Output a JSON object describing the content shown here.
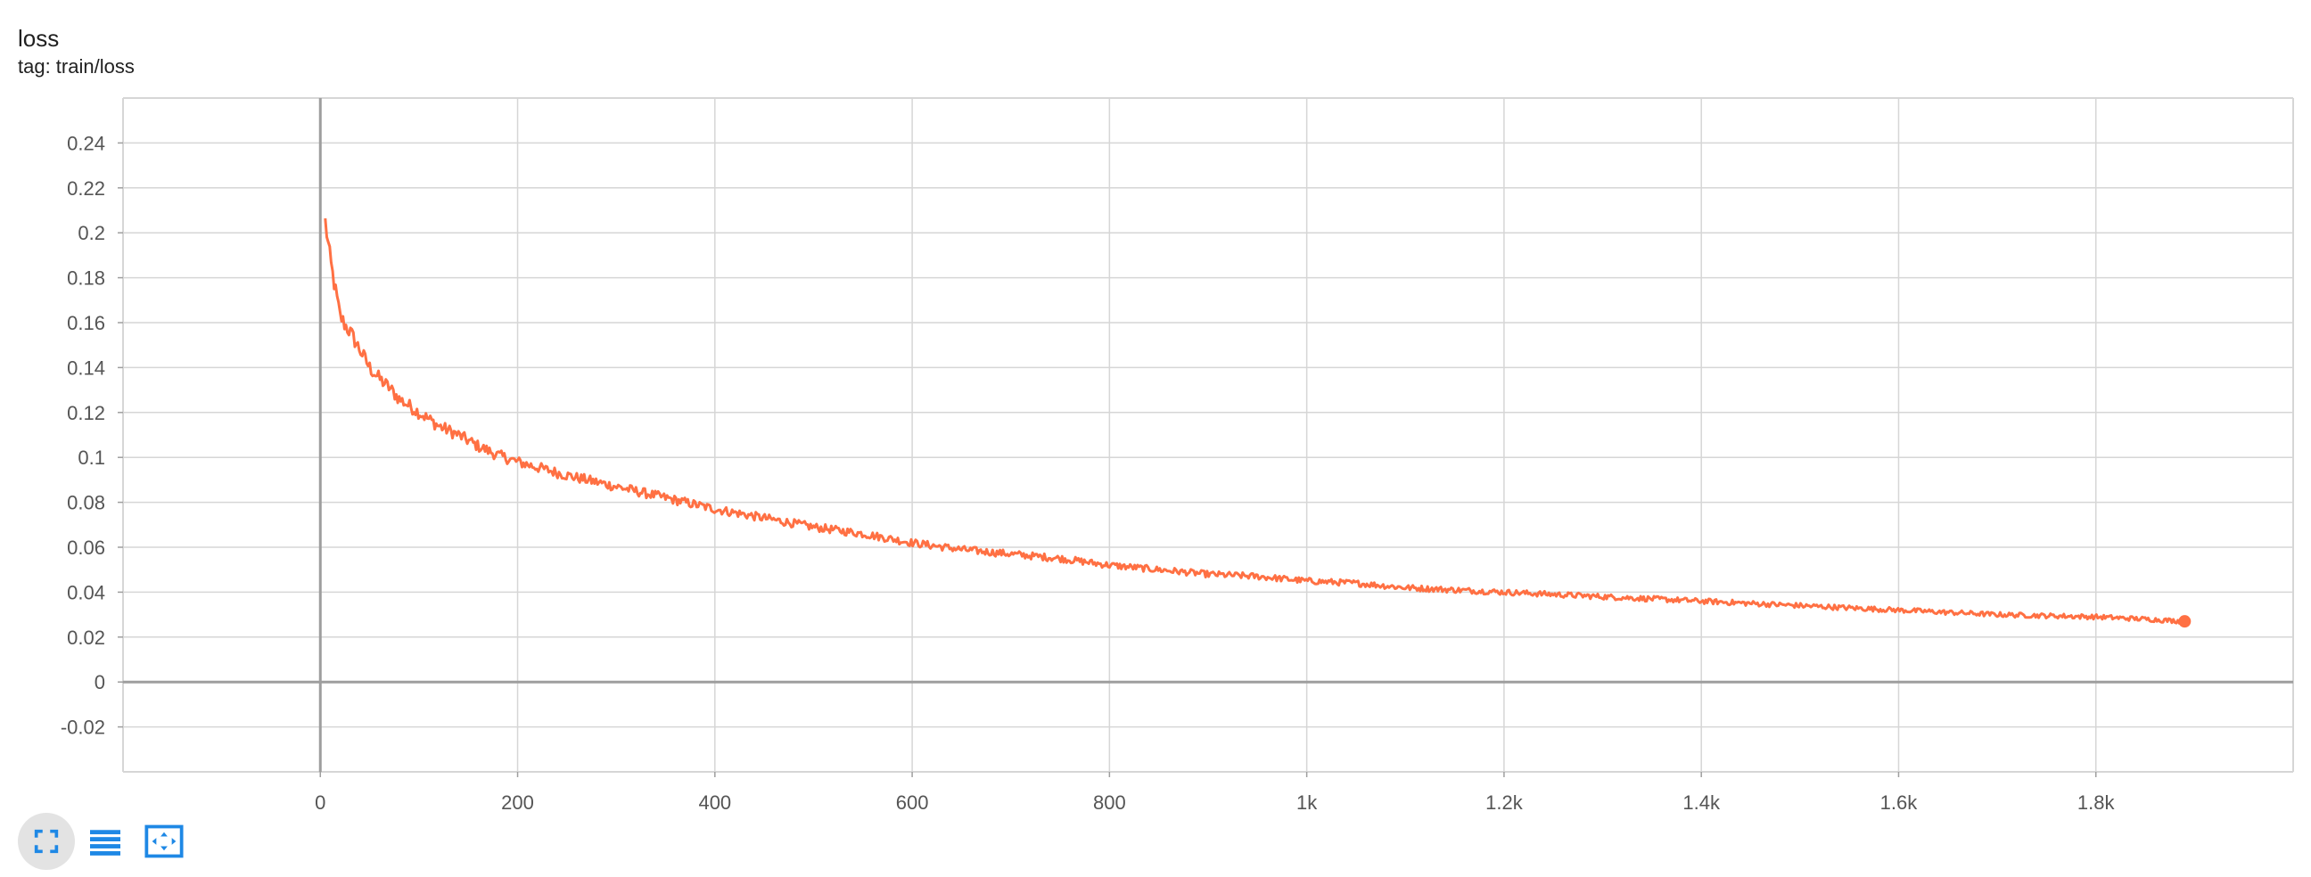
{
  "header": {
    "title": "loss",
    "subtitle": "tag: train/loss"
  },
  "toolbar": {
    "buttons": [
      {
        "name": "fullscreen-icon",
        "active": true
      },
      {
        "name": "data-table-icon",
        "active": false
      },
      {
        "name": "fit-domain-icon",
        "active": false
      }
    ]
  },
  "colors": {
    "series": "#ff7043",
    "grid": "#d6d6d6",
    "axis": "#9e9e9e",
    "icon": "#1e88e5"
  },
  "chart_data": {
    "type": "line",
    "title": "",
    "xlabel": "",
    "ylabel": "",
    "xlim": [
      -200,
      2000
    ],
    "ylim": [
      -0.04,
      0.26
    ],
    "grid": true,
    "x_ticks": [
      0,
      200,
      400,
      600,
      800,
      1000,
      1200,
      1400,
      1600,
      1800
    ],
    "x_tick_labels": [
      "0",
      "200",
      "400",
      "600",
      "800",
      "1k",
      "1.2k",
      "1.4k",
      "1.6k",
      "1.8k"
    ],
    "y_ticks": [
      -0.02,
      0,
      0.02,
      0.04,
      0.06,
      0.08,
      0.1,
      0.12,
      0.14,
      0.16,
      0.18,
      0.2,
      0.22,
      0.24
    ],
    "y_tick_labels": [
      "-0.02",
      "0",
      "0.02",
      "0.04",
      "0.06",
      "0.08",
      "0.1",
      "0.12",
      "0.14",
      "0.16",
      "0.18",
      "0.2",
      "0.22",
      "0.24"
    ],
    "series": [
      {
        "x": [
          5,
          10,
          15,
          20,
          25,
          30,
          40,
          50,
          60,
          70,
          80,
          100,
          120,
          140,
          160,
          180,
          200,
          250,
          300,
          350,
          400,
          450,
          500,
          550,
          600,
          650,
          700,
          750,
          800,
          850,
          900,
          950,
          1000,
          1050,
          1100,
          1150,
          1200,
          1250,
          1300,
          1350,
          1400,
          1450,
          1500,
          1550,
          1600,
          1650,
          1700,
          1750,
          1800,
          1850,
          1890
        ],
        "y": [
          0.205,
          0.188,
          0.175,
          0.163,
          0.159,
          0.156,
          0.148,
          0.14,
          0.135,
          0.131,
          0.126,
          0.12,
          0.114,
          0.11,
          0.105,
          0.101,
          0.098,
          0.092,
          0.087,
          0.082,
          0.077,
          0.073,
          0.069,
          0.066,
          0.062,
          0.059,
          0.057,
          0.055,
          0.052,
          0.05,
          0.048,
          0.047,
          0.045,
          0.044,
          0.042,
          0.041,
          0.04,
          0.039,
          0.038,
          0.037,
          0.036,
          0.035,
          0.034,
          0.033,
          0.032,
          0.031,
          0.03,
          0.0295,
          0.029,
          0.028,
          0.027
        ]
      }
    ]
  }
}
